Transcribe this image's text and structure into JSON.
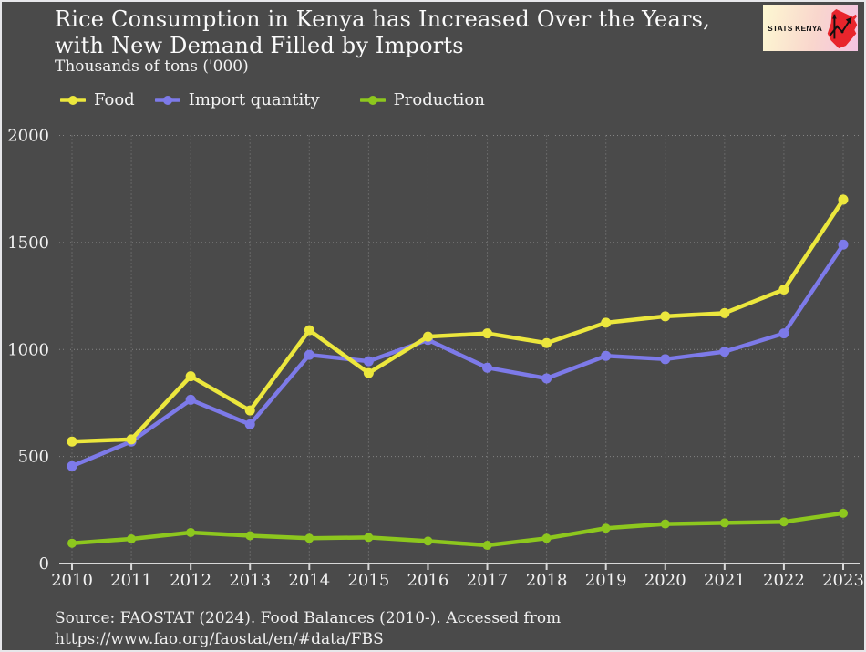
{
  "header": {
    "title_line1": "Rice Consumption in Kenya has Increased Over the Years,",
    "title_line2": "with New Demand Filled by Imports",
    "subtitle": "Thousands of tons ('000)"
  },
  "logo": {
    "text": "STATS KENYA"
  },
  "source": {
    "line1": "Source: FAOSTAT (2024). Food Balances (2010-). Accessed from",
    "line2": "https://www.fao.org/faostat/en/#data/FBS"
  },
  "colors": {
    "background": "#4a4a4a",
    "border": "#e7e7ea",
    "text": "#f2f2f2",
    "axis": "#d8d8d8",
    "grid": "#ffffff",
    "food": "#ece73d",
    "import": "#7d7ae9",
    "production": "#8dc71e",
    "logo_map_red": "#e8252c"
  },
  "chart_data": {
    "type": "line",
    "title": "Rice Consumption in Kenya has Increased Over the Years, with New Demand Filled by Imports",
    "subtitle": "Thousands of tons ('000)",
    "xlabel": "",
    "ylabel": "Thousands of tons ('000)",
    "x": [
      2010,
      2011,
      2012,
      2013,
      2014,
      2015,
      2016,
      2017,
      2018,
      2019,
      2020,
      2021,
      2022,
      2023
    ],
    "series": [
      {
        "name": "Food",
        "color": "#ece73d",
        "values": [
          570,
          580,
          875,
          715,
          1090,
          890,
          1060,
          1075,
          1030,
          1125,
          1155,
          1170,
          1280,
          1700
        ]
      },
      {
        "name": "Import quantity",
        "color": "#7d7ae9",
        "values": [
          455,
          570,
          765,
          650,
          975,
          945,
          1045,
          915,
          865,
          970,
          955,
          990,
          1075,
          1490
        ]
      },
      {
        "name": "Production",
        "color": "#8dc71e",
        "values": [
          95,
          115,
          145,
          130,
          118,
          122,
          105,
          85,
          118,
          165,
          185,
          190,
          195,
          235
        ]
      }
    ],
    "ylim": [
      0,
      2000
    ],
    "yticks": [
      0,
      500,
      1000,
      1500,
      2000
    ],
    "grid": true,
    "legend_position": "top-left"
  }
}
